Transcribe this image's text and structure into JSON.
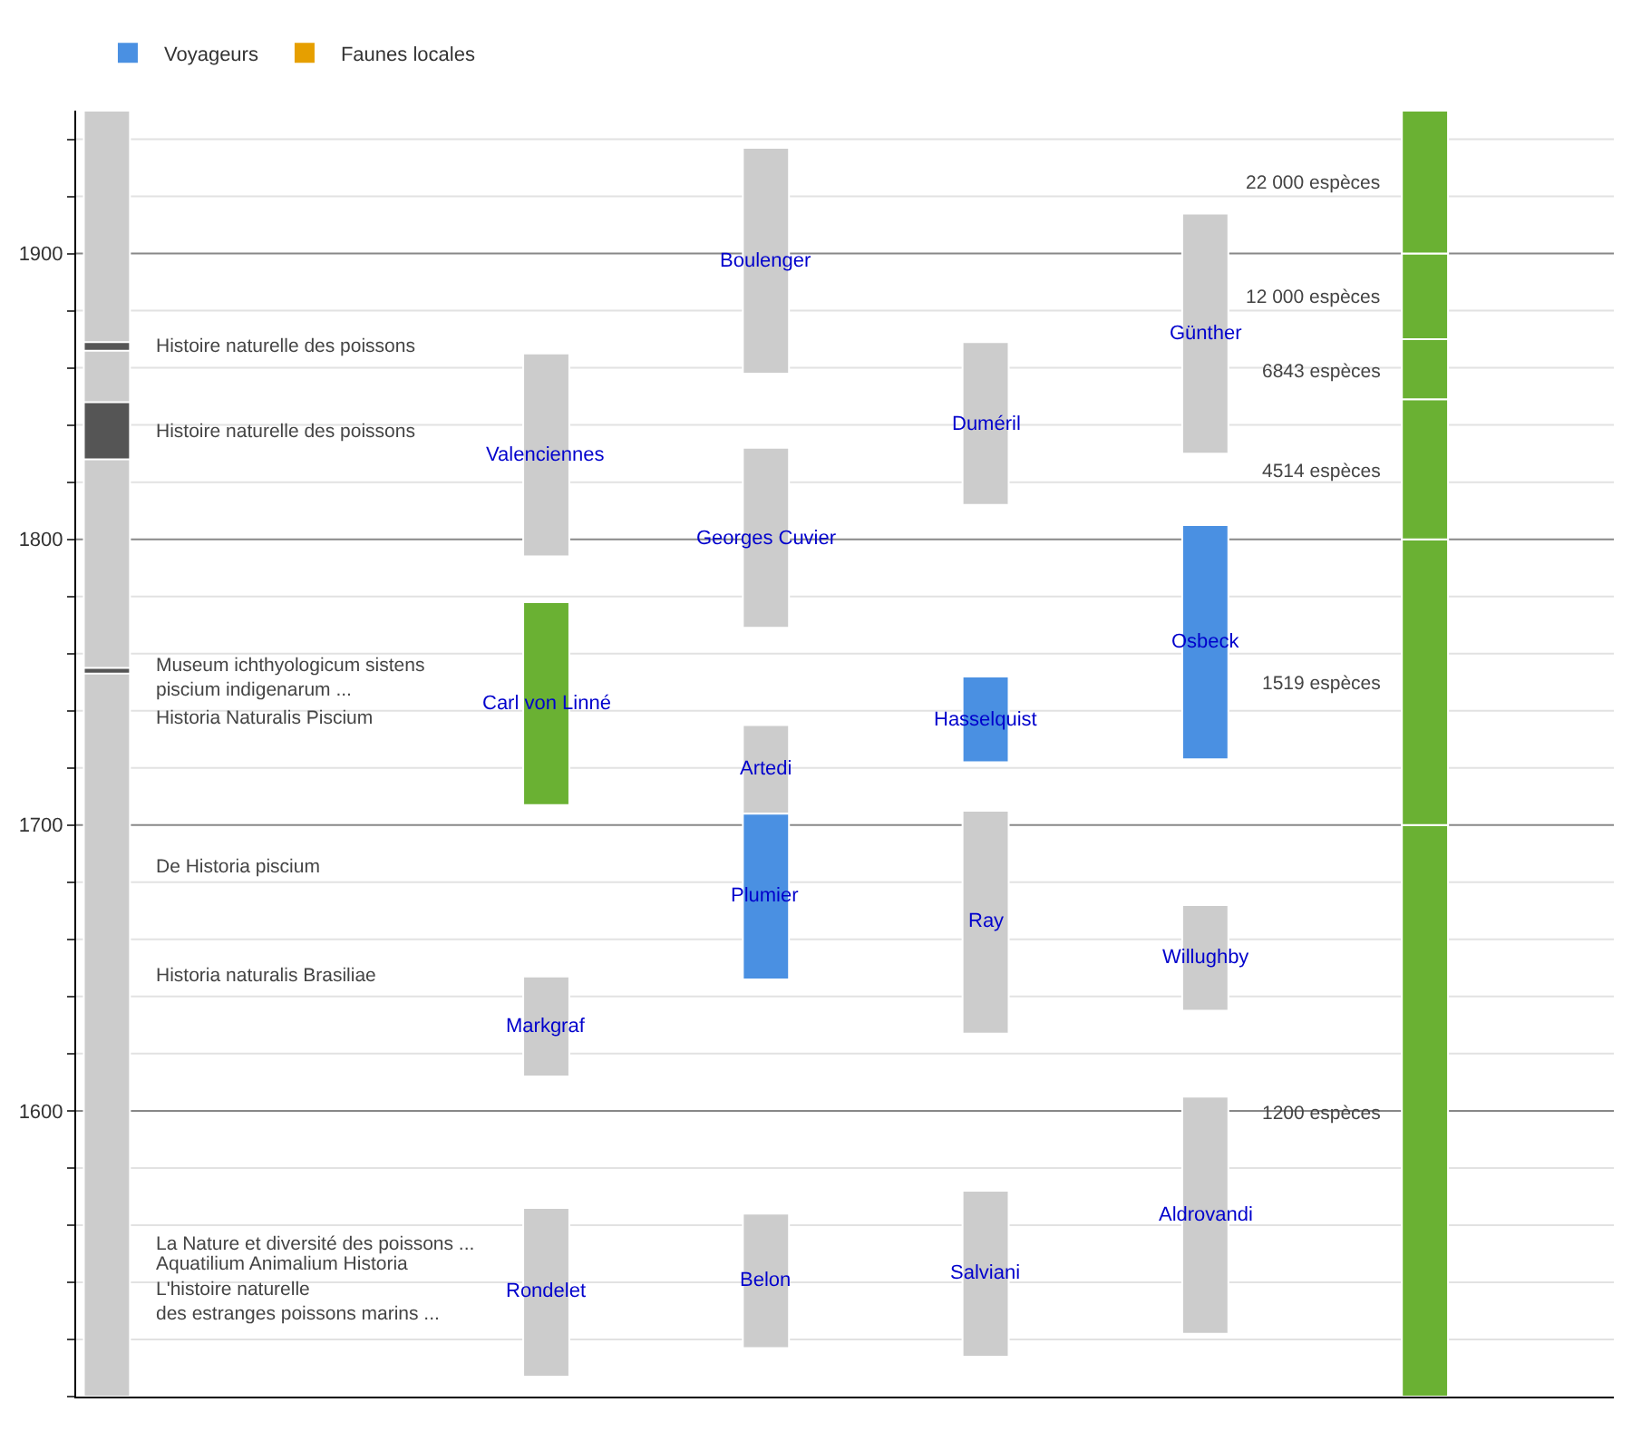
{
  "chart_data": {
    "type": "bar",
    "categories": [
      null,
      null,
      null,
      null,
      null,
      null,
      null
    ],
    "ylim": [
      1500,
      1950
    ],
    "yticks": [
      {
        "value": 1500,
        "label": null
      },
      {
        "value": 1520,
        "label": null
      },
      {
        "value": 1540,
        "label": null
      },
      {
        "value": 1560,
        "label": null
      },
      {
        "value": 1580,
        "label": null
      },
      1600,
      {
        "value": 1620,
        "label": null
      },
      {
        "value": 1640,
        "label": null
      },
      {
        "value": 1660,
        "label": null
      },
      {
        "value": 1680,
        "label": null
      },
      1700,
      {
        "value": 1720,
        "label": null
      },
      {
        "value": 1740,
        "label": null
      },
      {
        "value": 1760,
        "label": null
      },
      {
        "value": 1780,
        "label": null
      },
      1800,
      {
        "value": 1820,
        "label": null
      },
      {
        "value": 1840,
        "label": null
      },
      {
        "value": 1860,
        "label": null
      },
      {
        "value": 1880,
        "label": null
      },
      1900,
      {
        "value": 1920,
        "label": null
      },
      {
        "value": 1940,
        "label": null
      }
    ],
    "tick_labels": "y",
    "grid": "y",
    "legend": "top left",
    "series": [
      {
        "color": "#cccccc",
        "values": [
          450,
          null,
          71,
          79,
          57,
          84,
          null
        ],
        "base": [
          1500,
          null,
          1794,
          1858,
          1812,
          1830,
          null
        ],
        "value_labels": [
          null,
          null,
          "Valenciennes",
          "Boulenger",
          "Duméril",
          "Günther",
          null
        ]
      },
      {
        "color": "#cccccc",
        "values": [
          null,
          null,
          35,
          63,
          78,
          37,
          null
        ],
        "base": [
          null,
          null,
          1612,
          1769,
          1627,
          1635,
          null
        ],
        "value_labels": [
          null,
          null,
          "Markgraf",
          "Georges Cuvier",
          "Ray",
          "Willughby",
          null
        ]
      },
      {
        "color": "#cccccc",
        "values": [
          null,
          null,
          59,
          31,
          58,
          83,
          null
        ],
        "base": [
          null,
          null,
          1507,
          1704,
          1514,
          1522,
          null
        ],
        "value_labels": [
          null,
          null,
          "Rondelet",
          "Artedi",
          "Salviani",
          "Aldrovandi",
          null
        ]
      },
      {
        "color": "#cccccc",
        "values": [
          null,
          null,
          null,
          47,
          null,
          null,
          null
        ],
        "base": [
          null,
          null,
          null,
          1517,
          null,
          null,
          null
        ],
        "value_labels": [
          null,
          null,
          null,
          "Belon",
          null,
          null,
          null
        ]
      },
      {
        "name": "Voyageurs",
        "color": "#4a90e2",
        "values": [
          null,
          null,
          null,
          58,
          30,
          82,
          null
        ],
        "base": [
          null,
          null,
          null,
          1646,
          1722,
          1723,
          null
        ],
        "value_labels": [
          null,
          null,
          null,
          "Plumier",
          "Hasselquist",
          "Osbeck",
          null
        ]
      },
      {
        "name": "Faunes locales",
        "color": "#e69f00",
        "values": [
          null,
          null,
          null,
          null,
          null,
          null,
          null
        ],
        "base": [
          null,
          null,
          null,
          null,
          null,
          null,
          null
        ]
      },
      {
        "color": "#6ab133",
        "values": [
          null,
          null,
          71,
          null,
          null,
          null,
          200
        ],
        "base": [
          null,
          null,
          1707,
          null,
          null,
          null,
          1500
        ],
        "value_labels": [
          null,
          null,
          "Carl von Linné",
          null,
          null,
          null,
          null
        ]
      },
      {
        "color": "#6ab133",
        "values": [
          null,
          null,
          null,
          null,
          null,
          null,
          100
        ],
        "base": [
          null,
          null,
          null,
          null,
          null,
          null,
          1700
        ]
      },
      {
        "color": "#6ab133",
        "values": [
          null,
          null,
          null,
          null,
          null,
          null,
          49
        ],
        "base": [
          null,
          null,
          null,
          null,
          null,
          null,
          1800
        ]
      },
      {
        "color": "#6ab133",
        "values": [
          null,
          null,
          null,
          null,
          null,
          null,
          21
        ],
        "base": [
          null,
          null,
          null,
          null,
          null,
          null,
          1849
        ]
      },
      {
        "color": "#6ab133",
        "values": [
          null,
          null,
          null,
          null,
          null,
          null,
          30
        ],
        "base": [
          null,
          null,
          null,
          null,
          null,
          null,
          1870
        ]
      },
      {
        "color": "#6ab133",
        "values": [
          null,
          null,
          null,
          null,
          null,
          null,
          50
        ],
        "base": [
          null,
          null,
          null,
          null,
          null,
          null,
          1900
        ]
      },
      {
        "color": "#555555",
        "values": [
          3,
          null,
          null,
          null,
          null,
          null,
          null
        ],
        "base": [
          1866,
          null,
          null,
          null,
          null,
          null,
          null
        ]
      },
      {
        "color": "#555555",
        "values": [
          20,
          null,
          null,
          null,
          null,
          null,
          null
        ],
        "base": [
          1828,
          null,
          null,
          null,
          null,
          null,
          null
        ]
      },
      {
        "color": "#555555",
        "values": [
          2,
          null,
          null,
          null,
          null,
          null,
          null
        ],
        "base": [
          1753,
          null,
          null,
          null,
          null,
          null,
          null
        ]
      }
    ],
    "annotations": [
      "Histoire naturelle des poissons",
      "Histoire naturelle des poissons",
      "Museum ichthyologicum sistens\npiscium indigenarum ...",
      "Historia Naturalis Piscium",
      "De Historia piscium",
      "Historia naturalis Brasiliae",
      "La Nature et diversité des poissons ...",
      "Aquatilium Animalium Historia",
      "L'histoire naturelle\ndes estranges poissons marins ...",
      "22 000 espèces",
      "12 000 espèces",
      "6843 espèces",
      "4514 espèces",
      "1519 espèces",
      "1200 espèces"
    ]
  }
}
